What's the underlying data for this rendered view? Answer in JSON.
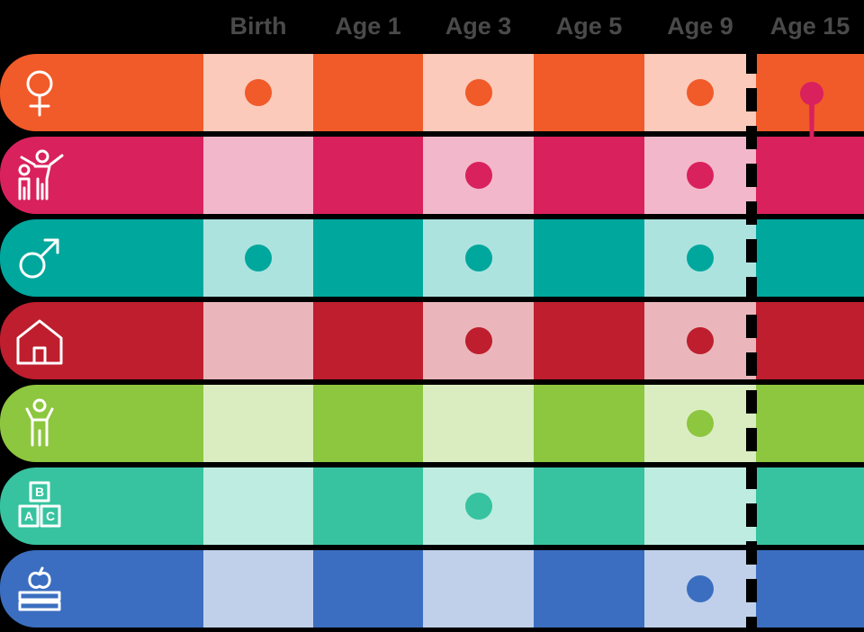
{
  "columns": [
    "Birth",
    "Age 1",
    "Age 3",
    "Age 5",
    "Age 9",
    "Age 15"
  ],
  "rows": [
    {
      "id": "female",
      "icon": "female-symbol-icon",
      "color": "#f15a29",
      "dots": [
        true,
        false,
        true,
        false,
        true,
        false
      ],
      "extra": "marker"
    },
    {
      "id": "family",
      "icon": "family-icon",
      "color": "#d9215e",
      "dots": [
        false,
        false,
        true,
        false,
        true,
        false
      ]
    },
    {
      "id": "male",
      "icon": "male-symbol-icon",
      "color": "#00a79d",
      "dots": [
        true,
        false,
        true,
        false,
        true,
        false
      ]
    },
    {
      "id": "home",
      "icon": "house-icon",
      "color": "#be1e2d",
      "dots": [
        false,
        false,
        true,
        false,
        true,
        false
      ]
    },
    {
      "id": "child",
      "icon": "child-icon",
      "color": "#8dc63f",
      "dots": [
        false,
        false,
        false,
        false,
        true,
        false
      ]
    },
    {
      "id": "abc-blocks",
      "icon": "abc-blocks-icon",
      "color": "#37c3a0",
      "dots": [
        false,
        false,
        true,
        false,
        false,
        false
      ]
    },
    {
      "id": "school",
      "icon": "apple-books-icon",
      "color": "#3b6ec0",
      "dots": [
        false,
        false,
        false,
        false,
        true,
        false
      ]
    }
  ],
  "blocks_letters": [
    "B",
    "A",
    "C"
  ]
}
